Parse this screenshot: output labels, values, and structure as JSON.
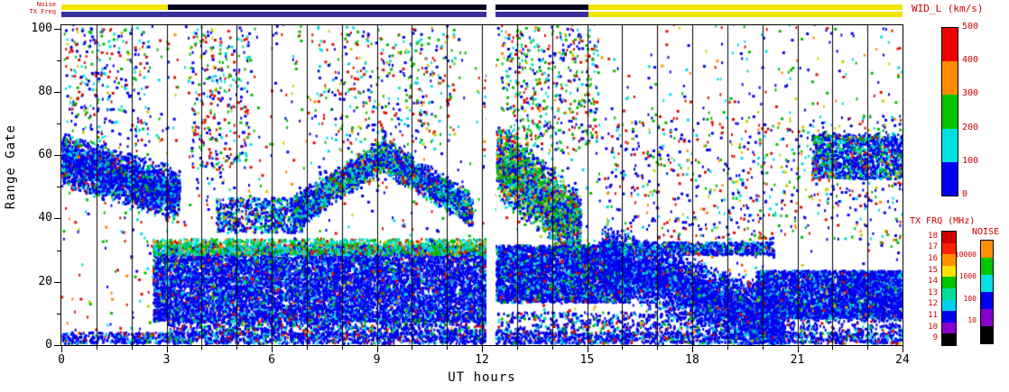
{
  "corner": {
    "noise_label": "Noise",
    "txfreq_label": "TX Freq"
  },
  "chart_data": {
    "type": "heatmap",
    "xlabel": "UT hours",
    "ylabel": "Range Gate",
    "xlim": [
      0,
      24
    ],
    "ylim": [
      0,
      101
    ],
    "x_major_ticks": [
      0,
      3,
      6,
      9,
      12,
      15,
      18,
      21,
      24
    ],
    "x_minor_step": 1,
    "y_major_ticks": [
      0,
      20,
      40,
      60,
      80,
      100
    ],
    "y_minor_ticks": [
      10,
      30,
      50,
      70,
      90
    ],
    "hour_gridlines": true,
    "gridline_color": "#000000",
    "data_gap_hours": [
      12.13,
      12.38
    ],
    "background": "#ffffff",
    "seed": 7,
    "top_bars": [
      {
        "name": "noise",
        "y": 5,
        "segments": [
          {
            "from": 0,
            "to": 3.05,
            "color": "#f0e400"
          },
          {
            "from": 3.05,
            "to": 12.13,
            "color": "#050522"
          },
          {
            "from": 12.38,
            "to": 15.05,
            "color": "#050522"
          },
          {
            "from": 15.05,
            "to": 24,
            "color": "#f0e400"
          }
        ]
      },
      {
        "name": "tx-freq",
        "y": 13,
        "segments": [
          {
            "from": 0,
            "to": 12.13,
            "color": "#3a2f9e"
          },
          {
            "from": 12.38,
            "to": 15.05,
            "color": "#3a2f9e"
          },
          {
            "from": 15.05,
            "to": 24,
            "color": "#f0e400"
          }
        ]
      }
    ],
    "colorbars": [
      {
        "name": "wid",
        "title": "WID_L (km/s)",
        "scale_range": [
          0,
          500
        ],
        "ticks": [
          "500",
          "400",
          "300",
          "200",
          "100",
          "0"
        ],
        "segments_top_to_bottom": [
          "#ee0000",
          "#ff8c00",
          "#00c400",
          "#00e0e0",
          "#0000ee"
        ]
      },
      {
        "name": "tx-frq",
        "title": "TX FRQ (MHz)",
        "scale_range": [
          9,
          18
        ],
        "ticks": [
          "18",
          "17",
          "16",
          "15",
          "14",
          "13",
          "12",
          "11",
          "10",
          "9"
        ],
        "segments_top_to_bottom": [
          "#cc0000",
          "#ff2200",
          "#ff9100",
          "#ffe000",
          "#00c400",
          "#00dd99",
          "#00cfee",
          "#0000ee",
          "#8800cc",
          "#000000"
        ]
      },
      {
        "name": "noise",
        "title": "NOISE",
        "scale_range": [
          10,
          10000
        ],
        "ticks": [
          "10000",
          "1000",
          "100",
          "10"
        ],
        "segments_top_to_bottom": [
          "#ff9100",
          "#00c400",
          "#00e0e0",
          "#0000ee",
          "#8800cc",
          "#000000"
        ]
      }
    ],
    "features": [
      {
        "x": [
          0,
          24
        ],
        "y": [
          0,
          3.5
        ],
        "count": 2400,
        "palette": [
          [
            "#0000ee",
            0.74
          ],
          [
            "#00dddd",
            0.12
          ],
          [
            "#3399ff",
            0.06
          ],
          [
            "#00bb00",
            0.04
          ],
          [
            "#dd1100",
            0.04
          ]
        ]
      },
      {
        "x": [
          2.6,
          12.12
        ],
        "y": [
          7,
          31
        ],
        "count": 9500,
        "palette": [
          [
            "#0000ee",
            0.72
          ],
          [
            "#2244ff",
            0.12
          ],
          [
            "#00dddd",
            0.1
          ],
          [
            "#00bb00",
            0.04
          ],
          [
            "#dd1100",
            0.02
          ]
        ]
      },
      {
        "x": [
          2.6,
          12.12
        ],
        "y": [
          28,
          33
        ],
        "count": 1300,
        "palette": [
          [
            "#00dddd",
            0.45
          ],
          [
            "#00bb00",
            0.35
          ],
          [
            "#cccc00",
            0.08
          ],
          [
            "#ff8800",
            0.05
          ],
          [
            "#dd1100",
            0.07
          ]
        ]
      },
      {
        "x": [
          3,
          12.12
        ],
        "y": [
          3,
          8
        ],
        "count": 900,
        "palette": [
          [
            "#0000ee",
            0.7
          ],
          [
            "#00dddd",
            0.15
          ],
          [
            "#00bb00",
            0.08
          ],
          [
            "#dd1100",
            0.07
          ]
        ]
      },
      {
        "x": [
          12.38,
          16.2
        ],
        "y": [
          13,
          31
        ],
        "count": 3800,
        "palette": [
          [
            "#0000ee",
            0.75
          ],
          [
            "#00dddd",
            0.13
          ],
          [
            "#00bb00",
            0.06
          ],
          [
            "#2244ff",
            0.03
          ],
          [
            "#dd1100",
            0.03
          ]
        ]
      },
      {
        "x": [
          12.38,
          24
        ],
        "y": [
          3,
          10
        ],
        "count": 900,
        "palette": [
          [
            "#0000ee",
            0.7
          ],
          [
            "#00dddd",
            0.15
          ],
          [
            "#00bb00",
            0.08
          ],
          [
            "#dd1100",
            0.07
          ]
        ]
      },
      {
        "x": [
          15.4,
          20.6
        ],
        "yline": [
          27,
          6
        ],
        "thick": 11,
        "count": 4600,
        "palette": [
          [
            "#0000ee",
            0.78
          ],
          [
            "#2244ff",
            0.1
          ],
          [
            "#00dddd",
            0.09
          ],
          [
            "#00bb00",
            0.02
          ],
          [
            "#dd1100",
            0.01
          ]
        ]
      },
      {
        "x": [
          19.8,
          24
        ],
        "y": [
          8,
          23
        ],
        "count": 3600,
        "palette": [
          [
            "#0000ee",
            0.78
          ],
          [
            "#00dddd",
            0.12
          ],
          [
            "#2244ff",
            0.06
          ],
          [
            "#00bb00",
            0.03
          ],
          [
            "#dd1100",
            0.01
          ]
        ]
      },
      {
        "x": [
          0,
          3.35
        ],
        "yline": [
          58,
          47
        ],
        "thick": 9,
        "count": 2800,
        "palette": [
          [
            "#0000ee",
            0.68
          ],
          [
            "#00dddd",
            0.18
          ],
          [
            "#00bb00",
            0.06
          ],
          [
            "#2244ff",
            0.05
          ],
          [
            "#dd1100",
            0.03
          ]
        ]
      },
      {
        "x": [
          6.6,
          9.1
        ],
        "yline": [
          41,
          59
        ],
        "thick": 6,
        "count": 1300,
        "palette": [
          [
            "#0000ee",
            0.5
          ],
          [
            "#00dddd",
            0.25
          ],
          [
            "#00bb00",
            0.18
          ],
          [
            "#dd1100",
            0.04
          ],
          [
            "#cccc00",
            0.03
          ]
        ]
      },
      {
        "x": [
          9.1,
          11.7
        ],
        "yline": [
          60,
          42
        ],
        "thick": 6,
        "count": 1500,
        "palette": [
          [
            "#0000ee",
            0.55
          ],
          [
            "#00dddd",
            0.25
          ],
          [
            "#00bb00",
            0.13
          ],
          [
            "#dd1100",
            0.04
          ],
          [
            "#cccc00",
            0.03
          ]
        ]
      },
      {
        "x": [
          12.4,
          14.8
        ],
        "yline": [
          58,
          36
        ],
        "thick": 13,
        "count": 2400,
        "palette": [
          [
            "#0000ee",
            0.34
          ],
          [
            "#00bb00",
            0.28
          ],
          [
            "#00dddd",
            0.2
          ],
          [
            "#cccc00",
            0.07
          ],
          [
            "#dd1100",
            0.07
          ],
          [
            "#ff8800",
            0.04
          ]
        ]
      },
      {
        "x": [
          21.4,
          24
        ],
        "y": [
          52,
          66
        ],
        "count": 1300,
        "palette": [
          [
            "#0000ee",
            0.55
          ],
          [
            "#00dddd",
            0.25
          ],
          [
            "#00bb00",
            0.12
          ],
          [
            "#dd1100",
            0.05
          ],
          [
            "#cccc00",
            0.03
          ]
        ]
      },
      {
        "x": [
          15.3,
          20.3
        ],
        "y": [
          28,
          32
        ],
        "count": 800,
        "palette": [
          [
            "#0000ee",
            0.7
          ],
          [
            "#00dddd",
            0.2
          ],
          [
            "#00bb00",
            0.06
          ],
          [
            "#dd1100",
            0.04
          ]
        ]
      },
      {
        "x": [
          4.4,
          6.9
        ],
        "y": [
          35,
          46
        ],
        "count": 650,
        "palette": [
          [
            "#0000ee",
            0.6
          ],
          [
            "#00dddd",
            0.22
          ],
          [
            "#00bb00",
            0.1
          ],
          [
            "#dd1100",
            0.05
          ],
          [
            "#cccc00",
            0.03
          ]
        ]
      },
      {
        "x": [
          0,
          24
        ],
        "y": [
          0,
          101
        ],
        "count": 1700,
        "palette": [
          [
            "#0000ee",
            0.34
          ],
          [
            "#dd1100",
            0.22
          ],
          [
            "#00bb00",
            0.16
          ],
          [
            "#00dddd",
            0.15
          ],
          [
            "#ff8800",
            0.07
          ],
          [
            "#cccc00",
            0.06
          ]
        ]
      },
      {
        "x": [
          12.5,
          15.3
        ],
        "y": [
          60,
          100
        ],
        "count": 450,
        "palette": [
          [
            "#00bb00",
            0.3
          ],
          [
            "#0000ee",
            0.25
          ],
          [
            "#dd1100",
            0.2
          ],
          [
            "#00dddd",
            0.15
          ],
          [
            "#cccc00",
            0.05
          ],
          [
            "#ff8800",
            0.05
          ]
        ]
      },
      {
        "x": [
          15.5,
          24
        ],
        "y": [
          33,
          72
        ],
        "count": 550,
        "palette": [
          [
            "#0000ee",
            0.4
          ],
          [
            "#dd1100",
            0.2
          ],
          [
            "#00bb00",
            0.15
          ],
          [
            "#00dddd",
            0.15
          ],
          [
            "#cccc00",
            0.05
          ],
          [
            "#ff8800",
            0.05
          ]
        ]
      },
      {
        "x": [
          0,
          2.5
        ],
        "y": [
          62,
          100
        ],
        "count": 260,
        "palette": [
          [
            "#0000ee",
            0.4
          ],
          [
            "#dd1100",
            0.2
          ],
          [
            "#00dddd",
            0.2
          ],
          [
            "#00bb00",
            0.15
          ],
          [
            "#cccc00",
            0.05
          ]
        ]
      },
      {
        "x": [
          3.6,
          5.4
        ],
        "y": [
          55,
          100
        ],
        "count": 280,
        "palette": [
          [
            "#0000ee",
            0.35
          ],
          [
            "#dd1100",
            0.25
          ],
          [
            "#00bb00",
            0.2
          ],
          [
            "#00dddd",
            0.15
          ],
          [
            "#cccc00",
            0.05
          ]
        ]
      },
      {
        "x": [
          7.3,
          11.2
        ],
        "y": [
          63,
          100
        ],
        "count": 300,
        "palette": [
          [
            "#0000ee",
            0.3
          ],
          [
            "#dd1100",
            0.25
          ],
          [
            "#00bb00",
            0.2
          ],
          [
            "#00dddd",
            0.2
          ],
          [
            "#cccc00",
            0.05
          ]
        ]
      }
    ]
  }
}
